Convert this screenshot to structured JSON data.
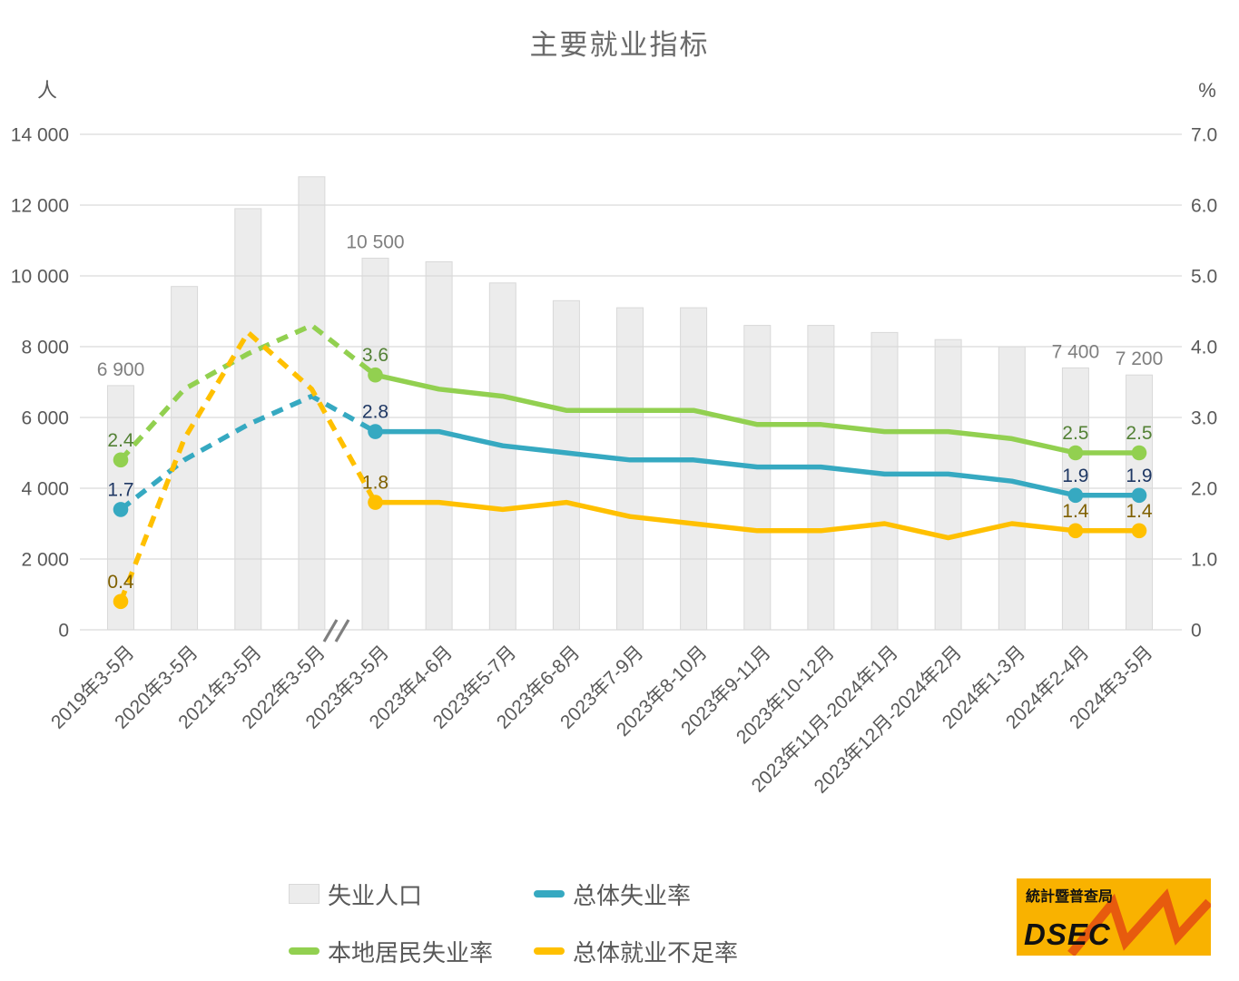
{
  "title": "主要就业指标",
  "left_axis": {
    "unit": "人",
    "max": 14000,
    "min": 0,
    "step": 2000,
    "ticks": [
      "14 000",
      "12 000",
      "10 000",
      "8 000",
      "6 000",
      "4 000",
      "2 000",
      "0"
    ]
  },
  "right_axis": {
    "unit": "%",
    "max": 7.0,
    "min": 0,
    "step": 1.0,
    "ticks": [
      "7.0",
      "6.0",
      "5.0",
      "4.0",
      "3.0",
      "2.0",
      "1.0",
      "0"
    ]
  },
  "chart_data": {
    "type": "combo-bar-line",
    "title": "主要就业指标",
    "categories": [
      "2019年3-5月",
      "2020年3-5月",
      "2021年3-5月",
      "2022年3-5月",
      "2023年3-5月",
      "2023年4-6月",
      "2023年5-7月",
      "2023年6-8月",
      "2023年7-9月",
      "2023年8-10月",
      "2023年9-11月",
      "2023年10-12月",
      "2023年11月-2024年1月",
      "2023年12月-2024年2月",
      "2024年1-3月",
      "2024年2-4月",
      "2024年3-5月"
    ],
    "axis_break_before_index": 4,
    "grid": "horizontal",
    "ylim_left": [
      0,
      14000
    ],
    "ylim_right": [
      0,
      7.0
    ],
    "bar_series": {
      "name": "失业人口",
      "axis": "left",
      "color": "#ECECEC",
      "border_color": "#D9D9D9",
      "label_color": "#7F7F7F",
      "values": [
        6900,
        9700,
        11900,
        12800,
        10500,
        10400,
        9800,
        9300,
        9100,
        9100,
        8600,
        8600,
        8400,
        8200,
        8000,
        7400,
        7200
      ],
      "point_labels": {
        "0": "6 900",
        "4": "10 500",
        "15": "7 400",
        "16": "7 200"
      }
    },
    "line_series": [
      {
        "name": "总体失业率",
        "axis": "right",
        "color": "#36A9C1",
        "label_color": "#1F3864",
        "values": [
          1.7,
          2.4,
          2.9,
          3.3,
          2.8,
          2.8,
          2.6,
          2.5,
          2.4,
          2.4,
          2.3,
          2.3,
          2.2,
          2.2,
          2.1,
          1.9,
          1.9
        ],
        "dashed_until_index": 4,
        "marker_indices": [
          0,
          4,
          15,
          16
        ],
        "point_labels": {
          "0": "1.7",
          "4": "2.8",
          "15": "1.9",
          "16": "1.9"
        }
      },
      {
        "name": "本地居民失业率",
        "axis": "right",
        "color": "#92D050",
        "label_color": "#538135",
        "values": [
          2.4,
          3.4,
          3.9,
          4.3,
          3.6,
          3.4,
          3.3,
          3.1,
          3.1,
          3.1,
          2.9,
          2.9,
          2.8,
          2.8,
          2.7,
          2.5,
          2.5
        ],
        "dashed_until_index": 4,
        "marker_indices": [
          0,
          4,
          15,
          16
        ],
        "point_labels": {
          "0": "2.4",
          "4": "3.6",
          "15": "2.5",
          "16": "2.5"
        }
      },
      {
        "name": "总体就业不足率",
        "axis": "right",
        "color": "#FFC000",
        "label_color": "#7F6000",
        "values": [
          0.4,
          2.7,
          4.2,
          3.4,
          1.8,
          1.8,
          1.7,
          1.8,
          1.6,
          1.5,
          1.4,
          1.4,
          1.5,
          1.3,
          1.5,
          1.4,
          1.4
        ],
        "dashed_until_index": 4,
        "marker_indices": [
          0,
          4,
          15,
          16
        ],
        "point_labels": {
          "0": "0.4",
          "4": "1.8",
          "15": "1.4",
          "16": "1.4"
        }
      }
    ]
  },
  "legend": {
    "items": [
      {
        "label": "失业人口",
        "swatch": "bar",
        "color": "#ECECEC"
      },
      {
        "label": "总体失业率",
        "swatch": "line",
        "color": "#36A9C1"
      },
      {
        "label": "本地居民失业率",
        "swatch": "line",
        "color": "#92D050"
      },
      {
        "label": "总体就业不足率",
        "swatch": "line",
        "color": "#FFC000"
      }
    ]
  },
  "logo": {
    "top_text": "統計暨普查局",
    "bottom_text": "DSEC",
    "bg_color": "#F9B200",
    "zigzag_color": "#E75B0E"
  },
  "colors": {
    "grid": "#D9D9D9",
    "axis_text": "#595959",
    "title_text": "#6A6A6A"
  }
}
